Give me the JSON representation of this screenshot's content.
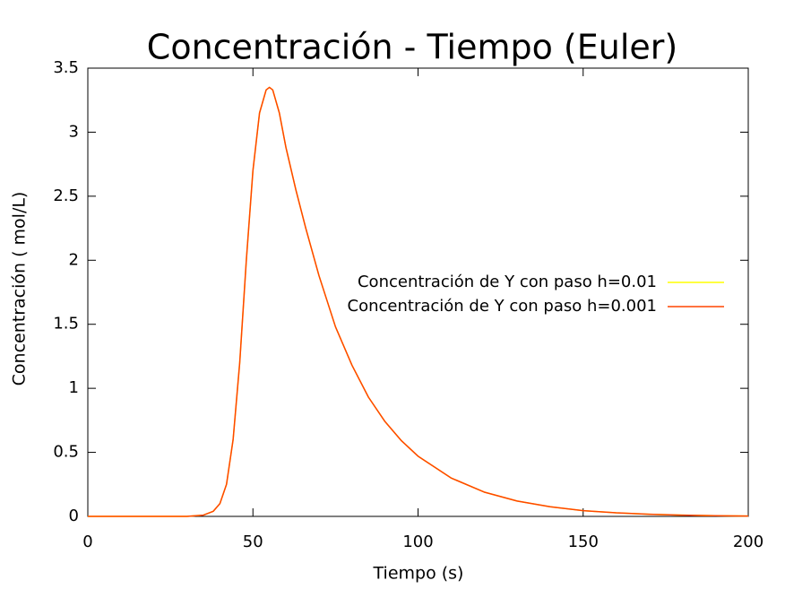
{
  "chart_data": {
    "type": "line",
    "title": "Concentración - Tiempo (Euler)",
    "x_label": "Tiempo (s)",
    "y_label": "Concentración ( mol/L)",
    "x": [
      0,
      10,
      20,
      30,
      35,
      38,
      40,
      42,
      44,
      46,
      48,
      50,
      52,
      54,
      55,
      56,
      58,
      60,
      63,
      66,
      70,
      75,
      80,
      85,
      90,
      95,
      100,
      110,
      120,
      130,
      140,
      150,
      160,
      170,
      180,
      190,
      200
    ],
    "series": [
      {
        "name": "Concentración de Y con paso h=0.01",
        "color": "#ffff00",
        "values": [
          0,
          0,
          0,
          0,
          0.01,
          0.04,
          0.1,
          0.25,
          0.6,
          1.2,
          2.0,
          2.7,
          3.15,
          3.33,
          3.35,
          3.33,
          3.15,
          2.88,
          2.55,
          2.25,
          1.88,
          1.48,
          1.18,
          0.93,
          0.74,
          0.59,
          0.47,
          0.3,
          0.19,
          0.12,
          0.075,
          0.045,
          0.028,
          0.017,
          0.01,
          0.005,
          0.003
        ]
      },
      {
        "name": "Concentración de Y con paso h=0.001",
        "color": "#ff4500",
        "values": [
          0,
          0,
          0,
          0,
          0.01,
          0.04,
          0.1,
          0.25,
          0.6,
          1.2,
          2.0,
          2.7,
          3.15,
          3.33,
          3.35,
          3.33,
          3.15,
          2.88,
          2.55,
          2.25,
          1.88,
          1.48,
          1.18,
          0.93,
          0.74,
          0.59,
          0.47,
          0.3,
          0.19,
          0.12,
          0.075,
          0.045,
          0.028,
          0.017,
          0.01,
          0.005,
          0.003
        ]
      }
    ],
    "xlim": [
      0,
      200
    ],
    "xticks": [
      0,
      50,
      100,
      150,
      200
    ],
    "ylim": [
      0,
      3.5
    ],
    "yticks": [
      0,
      0.5,
      1,
      1.5,
      2,
      2.5,
      3,
      3.5
    ],
    "grid": false,
    "legend": "right"
  }
}
